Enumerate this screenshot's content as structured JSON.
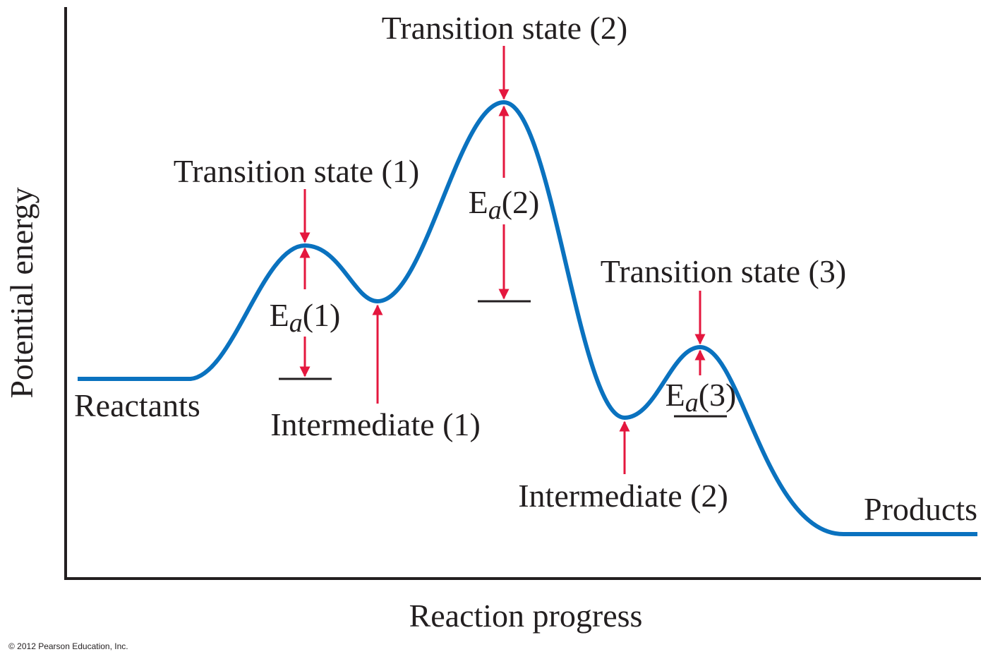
{
  "axes": {
    "y_label": "Potential energy",
    "x_label": "Reaction progress"
  },
  "transition_states": [
    "Transition state (1)",
    "Transition state (2)",
    "Transition state (3)"
  ],
  "intermediates": [
    "Intermediate (1)",
    "Intermediate (2)"
  ],
  "activation_energies": [
    {
      "base": "E",
      "sub": "a",
      "index": "(1)"
    },
    {
      "base": "E",
      "sub": "a",
      "index": "(2)"
    },
    {
      "base": "E",
      "sub": "a",
      "index": "(3)"
    }
  ],
  "reactants": "Reactants",
  "products": "Products",
  "copyright": "© 2012 Pearson Education, Inc."
}
